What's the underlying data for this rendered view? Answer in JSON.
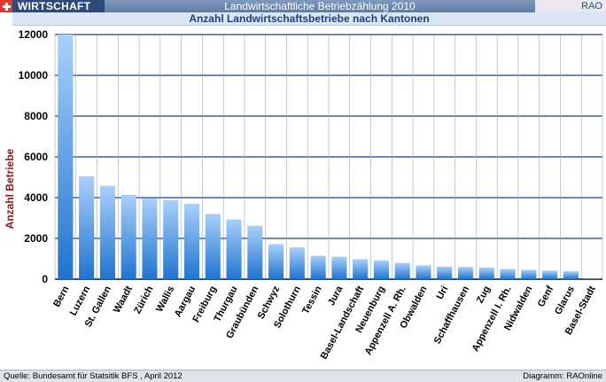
{
  "header": {
    "section_label": "WIRTSCHAFT",
    "title": "Landwirtschaftliche Betriebzählung 2010",
    "brand": "RAO"
  },
  "subtitle": "Anzahl Landwirtschaftsbetriebe nach Kantonen",
  "footer": {
    "source": "Quelle: Bundesamt für Statsitik BFS , April 2012",
    "credit": "Diagramm: RAOnline"
  },
  "colors": {
    "bar_top": "#a9d0fb",
    "bar_bottom": "#1f74cf",
    "grid": "#1e3f7a",
    "ylabel": "#8b1a1a"
  },
  "chart_data": {
    "type": "bar",
    "title": "Anzahl Landwirtschaftsbetriebe nach Kantonen",
    "ylabel": "Anzahl Betriebe",
    "xlabel": "",
    "ylim": [
      0,
      12000
    ],
    "yticks": [
      0,
      2000,
      4000,
      6000,
      8000,
      10000,
      12000
    ],
    "grid": true,
    "categories": [
      "Bern",
      "Luzern",
      "St. Gallen",
      "Waadt",
      "Zürich",
      "Wallis",
      "Aargau",
      "Freiburg",
      "Thurgau",
      "Graubünden",
      "Schwyz",
      "Solothurn",
      "Tessin",
      "Jura",
      "Basel-Landschaft",
      "Neuenburg",
      "Appenzell A. Rh.",
      "Obwalden",
      "Uri",
      "Schaffhausen",
      "Zug",
      "Appenzell I. Rh.",
      "Nidwalden",
      "Genf",
      "Glarus",
      "Basel-Stadt"
    ],
    "values": [
      12000,
      5050,
      4580,
      4130,
      3950,
      3880,
      3700,
      3200,
      2930,
      2620,
      1720,
      1560,
      1150,
      1100,
      980,
      920,
      800,
      680,
      620,
      600,
      570,
      500,
      460,
      420,
      390,
      10
    ]
  }
}
